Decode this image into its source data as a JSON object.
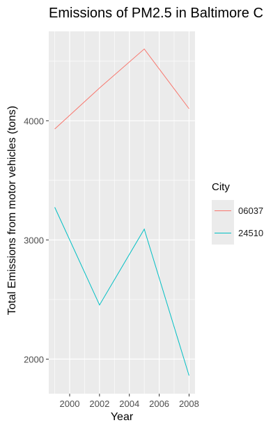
{
  "chart_data": {
    "type": "line",
    "title": "Emissions of PM2.5 in Baltimore C",
    "xlabel": "Year",
    "ylabel": "Total Emissions from motor vehicles (tons)",
    "x": [
      1999,
      2002,
      2005,
      2008
    ],
    "xlim": [
      1998.6,
      2008.4
    ],
    "ylim": [
      1710,
      4750
    ],
    "x_ticks": [
      "2000",
      "2002",
      "2004",
      "2006",
      "2008"
    ],
    "y_ticks": [
      "2000",
      "3000",
      "4000"
    ],
    "series": [
      {
        "name": "06037",
        "color": "#F8766D",
        "values": [
          3931,
          4275,
          4602,
          4101
        ]
      },
      {
        "name": "24510",
        "color": "#00BFC4",
        "values": [
          3274,
          2454,
          3090,
          1862
        ]
      }
    ],
    "legend": {
      "title": "City",
      "position": "right"
    },
    "grid": true,
    "panel_background": "#ebebeb"
  }
}
